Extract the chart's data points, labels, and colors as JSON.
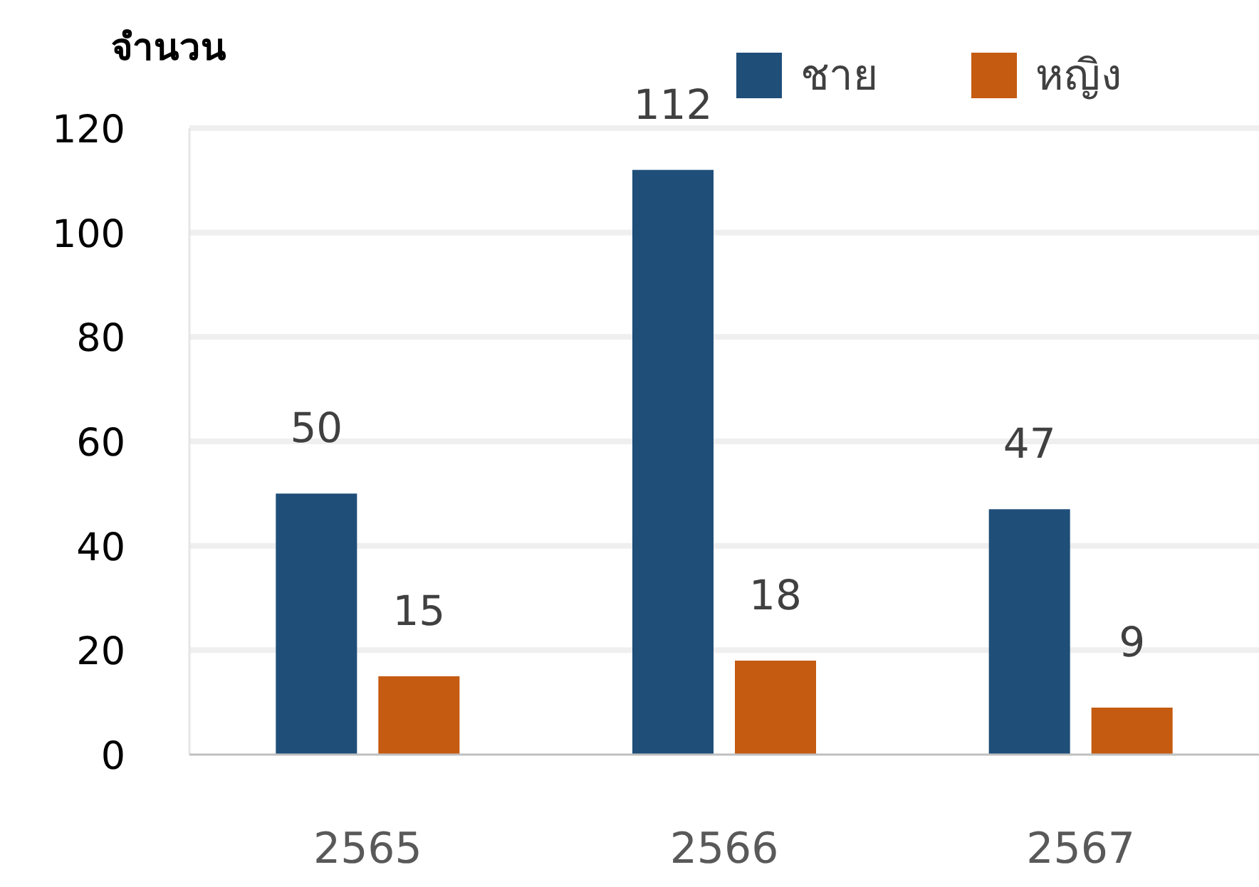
{
  "chart_data": {
    "type": "bar",
    "ylabel": "จำนวน",
    "categories": [
      "2565",
      "2566",
      "2567"
    ],
    "series": [
      {
        "name": "ชาย",
        "color": "#1f4e79",
        "values": [
          50,
          112,
          47
        ]
      },
      {
        "name": "หญิง",
        "color": "#c55a11",
        "values": [
          15,
          18,
          9
        ]
      }
    ],
    "ylim": [
      0,
      120
    ],
    "yticks": [
      0,
      20,
      40,
      60,
      80,
      100,
      120
    ],
    "grid": "y",
    "legend": "top right",
    "data_labels": true
  }
}
